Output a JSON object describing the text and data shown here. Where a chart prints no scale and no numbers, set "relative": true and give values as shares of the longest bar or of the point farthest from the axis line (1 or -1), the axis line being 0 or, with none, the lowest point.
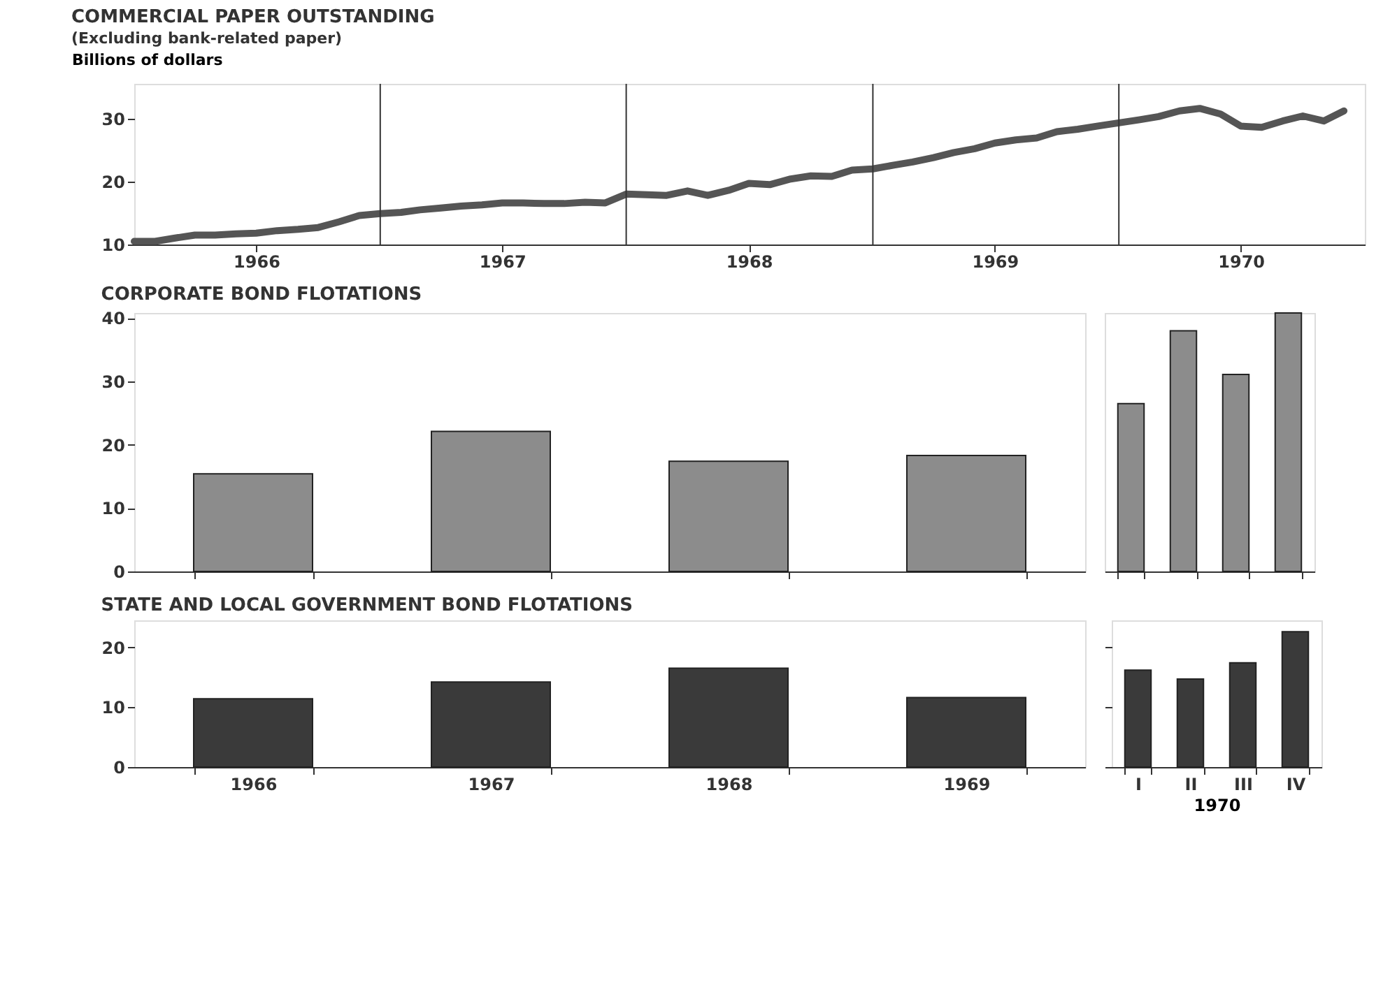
{
  "chart_data": [
    {
      "type": "line",
      "title": "COMMERCIAL PAPER OUTSTANDING",
      "subtitle": "(Excluding bank-related paper)",
      "ylabel": "Billions of dollars",
      "x": [
        "1966-01",
        "1966-02",
        "1966-03",
        "1966-04",
        "1966-05",
        "1966-06",
        "1966-07",
        "1966-08",
        "1966-09",
        "1966-10",
        "1966-11",
        "1966-12",
        "1967-01",
        "1967-02",
        "1967-03",
        "1967-04",
        "1967-05",
        "1967-06",
        "1967-07",
        "1967-08",
        "1967-09",
        "1967-10",
        "1967-11",
        "1967-12",
        "1968-01",
        "1968-02",
        "1968-03",
        "1968-04",
        "1968-05",
        "1968-06",
        "1968-07",
        "1968-08",
        "1968-09",
        "1968-10",
        "1968-11",
        "1968-12",
        "1969-01",
        "1969-02",
        "1969-03",
        "1969-04",
        "1969-05",
        "1969-06",
        "1969-07",
        "1969-08",
        "1969-09",
        "1969-10",
        "1969-11",
        "1969-12",
        "1970-01",
        "1970-02",
        "1970-03",
        "1970-04",
        "1970-05",
        "1970-06",
        "1970-07",
        "1970-08",
        "1970-09",
        "1970-10",
        "1970-11",
        "1970-12"
      ],
      "series": [
        {
          "color": "#555555",
          "values": [
            10.5,
            10.5,
            11.0,
            11.5,
            11.5,
            11.7,
            11.8,
            12.2,
            12.4,
            12.7,
            13.6,
            14.6,
            14.9,
            15.1,
            15.5,
            15.8,
            16.1,
            16.3,
            16.6,
            16.6,
            16.5,
            16.5,
            16.7,
            16.6,
            18.0,
            17.9,
            17.8,
            18.5,
            17.8,
            18.6,
            19.7,
            19.5,
            20.4,
            20.9,
            20.8,
            21.8,
            22.0,
            22.6,
            23.1,
            23.8,
            24.6,
            25.2,
            26.1,
            26.6,
            26.9,
            27.9,
            28.3,
            28.8,
            29.3,
            29.8,
            30.3,
            31.2,
            31.6,
            30.7,
            28.8,
            28.6,
            29.6,
            30.4,
            29.6,
            31.2
          ]
        }
      ],
      "xlim": [
        "1966-01-01",
        "1971-01-01"
      ],
      "ylim": [
        10,
        35.5
      ],
      "yticks": [
        10,
        20,
        30
      ],
      "xticks": [
        {
          "value": "1966-07-01",
          "label": "1966"
        },
        {
          "value": "1967-07-01",
          "label": "1967"
        },
        {
          "value": "1968-07-01",
          "label": "1968"
        },
        {
          "value": "1969-07-01",
          "label": "1969"
        },
        {
          "value": "1970-07-01",
          "label": "1970"
        }
      ],
      "ref_lines": [
        {
          "axis": "x",
          "value": "1967-01-01",
          "color": "#333333"
        },
        {
          "axis": "x",
          "value": "1968-01-01",
          "color": "#333333"
        },
        {
          "axis": "x",
          "value": "1969-01-01",
          "color": "#333333"
        },
        {
          "axis": "x",
          "value": "1970-01-01",
          "color": "#333333"
        }
      ],
      "line_style": "solid",
      "marker": "none"
    },
    {
      "type": "bar",
      "title": "CORPORATE BOND FLOTATIONS",
      "categories": [
        null,
        null,
        null,
        null
      ],
      "values": [
        15.4,
        22.1,
        17.4,
        18.3
      ],
      "color": "#8c8c8c",
      "ylim": [
        0,
        40.8
      ],
      "yticks": [
        0,
        10,
        20,
        30,
        40
      ],
      "tick_labels": "y"
    },
    {
      "type": "bar",
      "categories": [
        null,
        null,
        null,
        null
      ],
      "values": [
        0.649,
        0.931,
        0.762,
        1
      ],
      "color": "#8c8c8c",
      "relative": true,
      "tick_labels": false
    },
    {
      "type": "bar",
      "title": "STATE AND LOCAL GOVERNMENT BOND FLOTATIONS",
      "categories": [
        "1966",
        "1967",
        "1968",
        "1969"
      ],
      "values": [
        11.4,
        14.2,
        16.5,
        11.6
      ],
      "color": "#3a3a3a",
      "ylim": [
        0,
        24.5
      ],
      "yticks": [
        0,
        10,
        20
      ]
    },
    {
      "type": "bar",
      "xlabel": "1970",
      "categories": [
        "I",
        "II",
        "III",
        "IV"
      ],
      "values": [
        16.2,
        14.7,
        17.4,
        22.6
      ],
      "color": "#3a3a3a",
      "ylim": [
        0,
        24.5
      ],
      "yticks": [
        0,
        10,
        20
      ],
      "tick_labels": "x"
    }
  ]
}
